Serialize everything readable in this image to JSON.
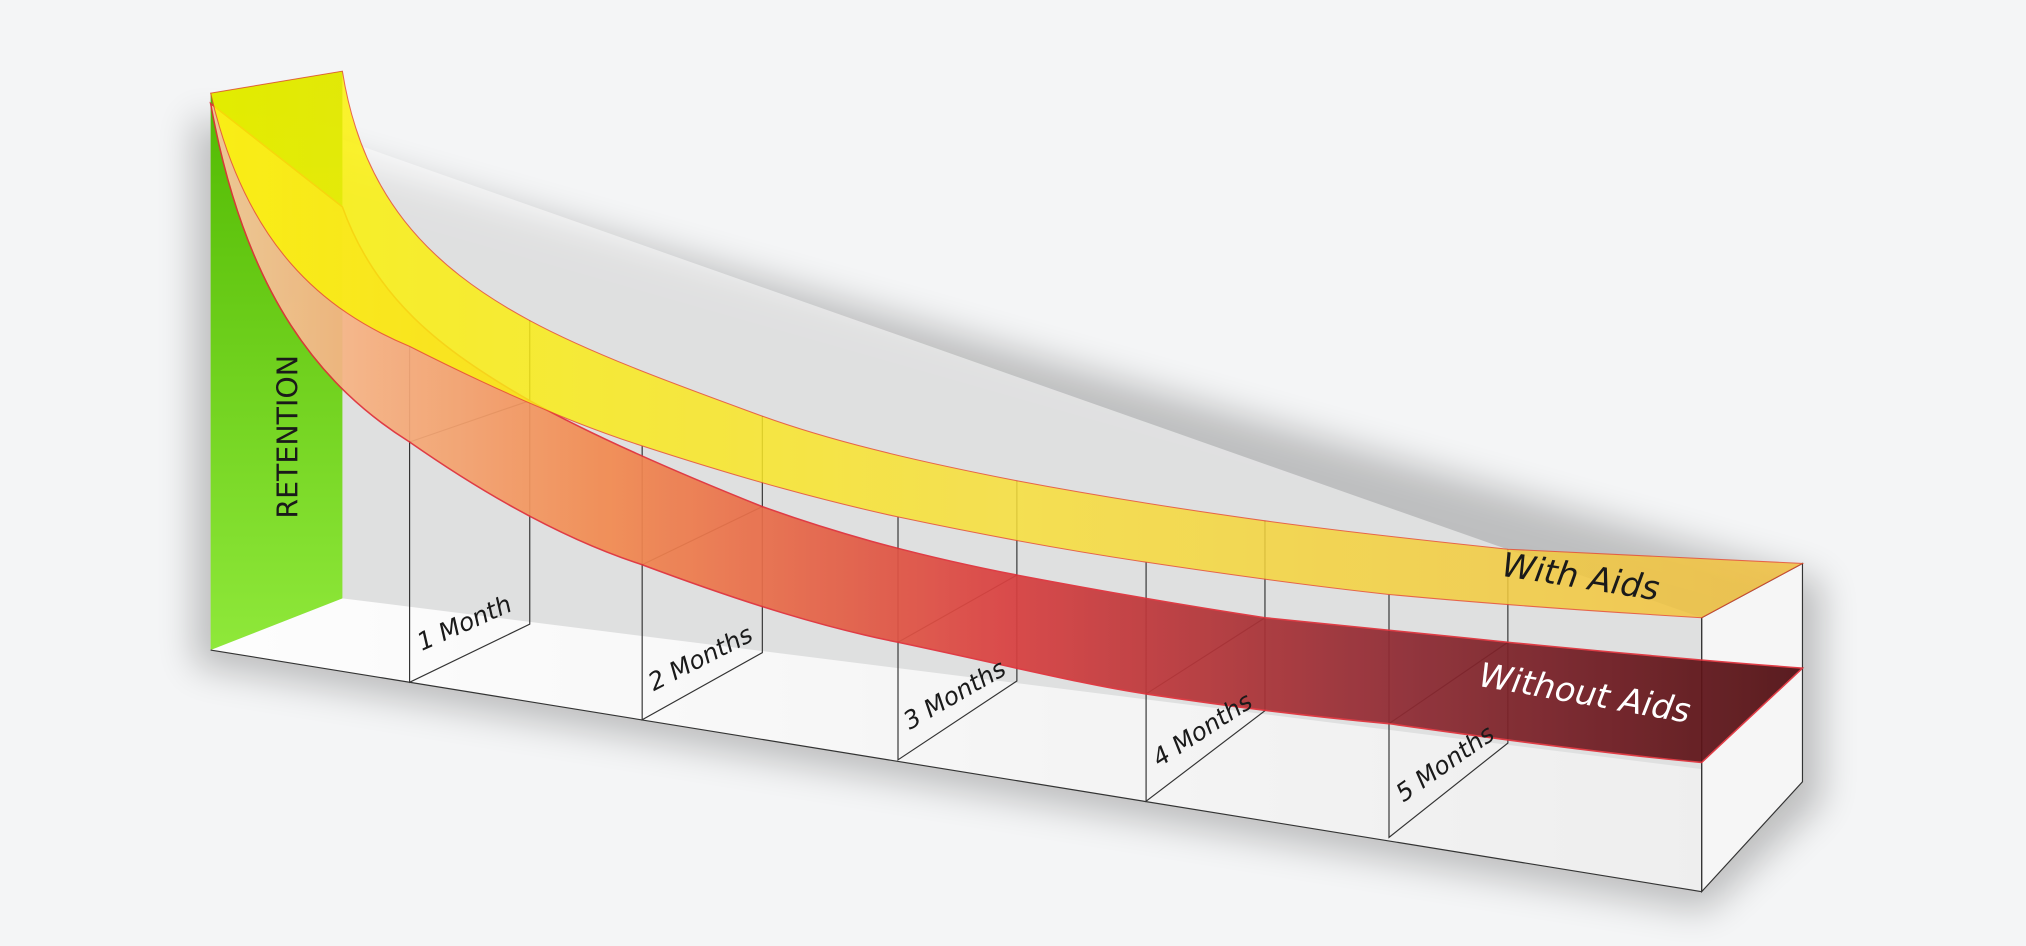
{
  "axis_label": "RETENTION",
  "periods": [
    "1 Month",
    "2 Months",
    "3 Months",
    "4 Months",
    "5 Months"
  ],
  "curves": {
    "with_aids": "With Aids",
    "without_aids": "Without Aids"
  }
}
